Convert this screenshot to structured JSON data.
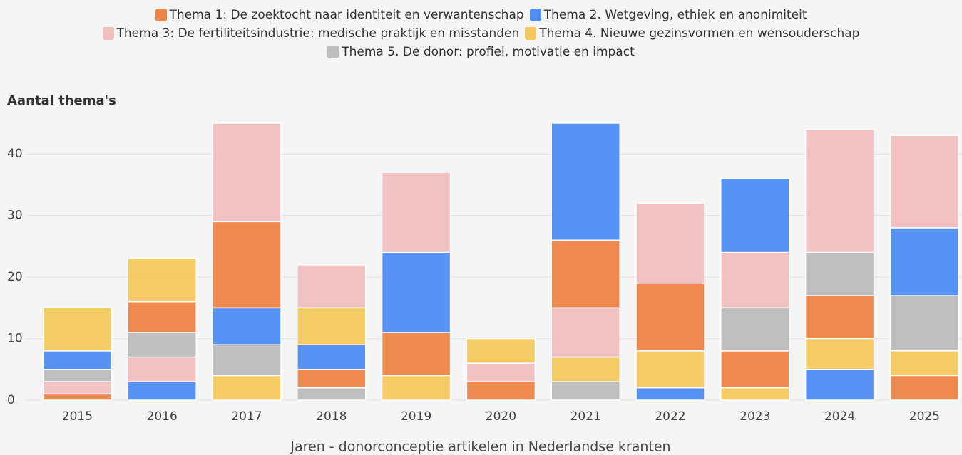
{
  "chart_data": {
    "type": "stacked_bar",
    "y_title": "Aantal thema's",
    "x_title": "Jaren - donorconceptie artikelen in Nederlandse kranten",
    "categories": [
      "2015",
      "2016",
      "2017",
      "2018",
      "2019",
      "2020",
      "2021",
      "2022",
      "2023",
      "2024",
      "2025"
    ],
    "series": [
      {
        "name": "Thema 1: De zoektocht naar identiteit en verwantenschap",
        "color": "#ee8548",
        "values": [
          1,
          5,
          14,
          3,
          7,
          3,
          11,
          11,
          6,
          7,
          4
        ]
      },
      {
        "name": "Thema 2. Wetgeving, ethiek en anonimiteit",
        "color": "#4f8ef5",
        "values": [
          3,
          3,
          6,
          4,
          13,
          0,
          19,
          2,
          12,
          5,
          11
        ]
      },
      {
        "name": "Thema 3: De fertiliteitsindustrie: medische praktijk en misstanden",
        "color": "#f2bfbf",
        "values": [
          2,
          4,
          16,
          7,
          13,
          3,
          8,
          13,
          9,
          20,
          15
        ]
      },
      {
        "name": "Thema 4. Nieuwe gezinsvormen en wensouderschap",
        "color": "#f6c95e",
        "values": [
          7,
          7,
          4,
          6,
          4,
          4,
          4,
          6,
          2,
          5,
          4
        ]
      },
      {
        "name": "Thema 5. De donor: profiel, motivatie en impact",
        "color": "#bdbdbd",
        "values": [
          2,
          4,
          5,
          2,
          0,
          0,
          3,
          0,
          7,
          7,
          9
        ]
      }
    ],
    "ylim": [
      0,
      45
    ],
    "yticks": [
      0,
      10,
      20,
      30,
      40
    ],
    "grid": true
  }
}
